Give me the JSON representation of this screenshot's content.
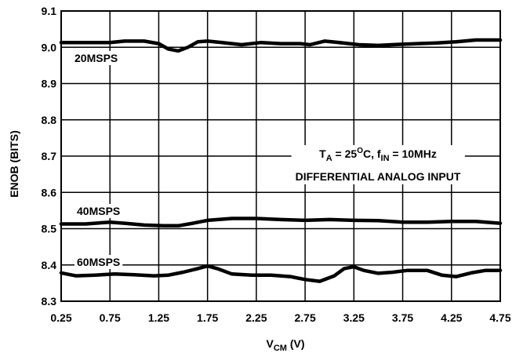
{
  "chart_data": {
    "type": "line",
    "xlabel": {
      "main": "V",
      "sub": "CM",
      "unit": " (V)"
    },
    "ylabel": "ENOB (BITS)",
    "xlim": [
      0.25,
      4.75
    ],
    "ylim": [
      8.3,
      9.1
    ],
    "xticks": [
      "0.25",
      "0.75",
      "1.25",
      "1.75",
      "2.25",
      "2.75",
      "3.25",
      "3.75",
      "4.25",
      "4.75"
    ],
    "yticks": [
      "8.3",
      "8.4",
      "8.5",
      "8.6",
      "8.7",
      "8.8",
      "8.9",
      "9.0",
      "9.1"
    ],
    "grid": true,
    "annotation": {
      "line1_parts": [
        {
          "t": "T",
          "s": "n"
        },
        {
          "t": "A",
          "s": "sub"
        },
        {
          "t": " = 25",
          "s": "n"
        },
        {
          "t": "O",
          "s": "sup"
        },
        {
          "t": "C, f",
          "s": "n"
        },
        {
          "t": "IN",
          "s": "sub"
        },
        {
          "t": " = 10MHz",
          "s": "n"
        }
      ],
      "line2": "DIFFERENTIAL ANALOG INPUT"
    },
    "series": [
      {
        "name": "20MSPS",
        "x": [
          0.25,
          0.5,
          0.75,
          0.9,
          1.1,
          1.25,
          1.35,
          1.45,
          1.55,
          1.65,
          1.75,
          1.9,
          2.1,
          2.3,
          2.5,
          2.7,
          2.8,
          2.95,
          3.1,
          3.3,
          3.5,
          3.7,
          3.9,
          4.1,
          4.3,
          4.5,
          4.75
        ],
        "y": [
          9.013,
          9.013,
          9.013,
          9.017,
          9.017,
          9.01,
          8.995,
          8.99,
          9.0,
          9.015,
          9.017,
          9.013,
          9.007,
          9.013,
          9.01,
          9.01,
          9.007,
          9.017,
          9.013,
          9.007,
          9.005,
          9.008,
          9.01,
          9.012,
          9.015,
          9.02,
          9.02
        ]
      },
      {
        "name": "40MSPS",
        "x": [
          0.25,
          0.5,
          0.75,
          0.9,
          1.1,
          1.3,
          1.45,
          1.6,
          1.75,
          2.0,
          2.25,
          2.5,
          2.75,
          3.0,
          3.25,
          3.5,
          3.75,
          4.0,
          4.25,
          4.5,
          4.75
        ],
        "y": [
          8.513,
          8.513,
          8.518,
          8.515,
          8.51,
          8.508,
          8.508,
          8.515,
          8.523,
          8.528,
          8.528,
          8.525,
          8.523,
          8.525,
          8.523,
          8.522,
          8.518,
          8.518,
          8.52,
          8.52,
          8.515
        ]
      },
      {
        "name": "60MSPS",
        "x": [
          0.25,
          0.4,
          0.6,
          0.8,
          1.0,
          1.2,
          1.35,
          1.5,
          1.65,
          1.75,
          1.85,
          2.0,
          2.2,
          2.4,
          2.6,
          2.75,
          2.9,
          3.05,
          3.15,
          3.25,
          3.35,
          3.5,
          3.65,
          3.8,
          4.0,
          4.15,
          4.3,
          4.45,
          4.6,
          4.75
        ],
        "y": [
          8.378,
          8.37,
          8.372,
          8.375,
          8.373,
          8.37,
          8.372,
          8.38,
          8.39,
          8.397,
          8.39,
          8.375,
          8.372,
          8.372,
          8.368,
          8.36,
          8.355,
          8.37,
          8.39,
          8.395,
          8.385,
          8.377,
          8.38,
          8.385,
          8.385,
          8.372,
          8.368,
          8.378,
          8.385,
          8.385
        ]
      }
    ]
  }
}
